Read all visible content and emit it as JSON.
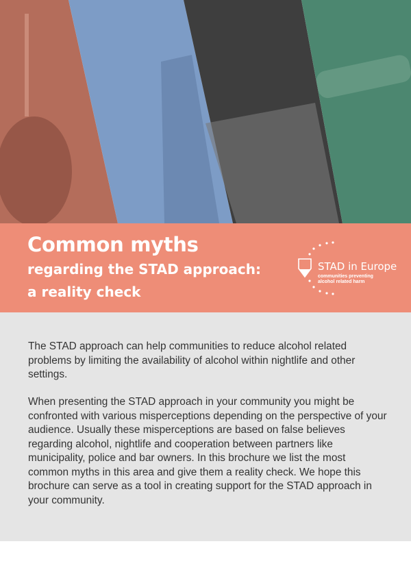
{
  "banner": {
    "title_line1": "Common myths",
    "title_line2": "regarding the STAD approach:",
    "title_line3": "a reality check"
  },
  "logo": {
    "name": "STAD in Europe",
    "tagline_line1": "communities preventing",
    "tagline_line2": "alcohol related harm"
  },
  "body": {
    "paragraphs": [
      "The STAD approach can help communities to reduce alcohol related problems by limiting the availability of alcohol within nightlife and other settings.",
      "When presenting the STAD approach in your community you might be confronted with various misperceptions depending on the perspective of your audience. Usually these misperceptions are based on false believes regarding alcohol, nightlife and cooperation between partners like municipality, police and bar owners. In this brochure we list the most common myths in this area and give them a reality check. We hope this brochure can serve as a tool in creating support for the STAD approach in your community."
    ]
  },
  "colors": {
    "banner": "#ee8d77",
    "body_background": "#e5e5e5",
    "photo_tints": [
      "#b8705e",
      "#7b9ac4",
      "#5a5a5a",
      "#4f8a72"
    ]
  }
}
